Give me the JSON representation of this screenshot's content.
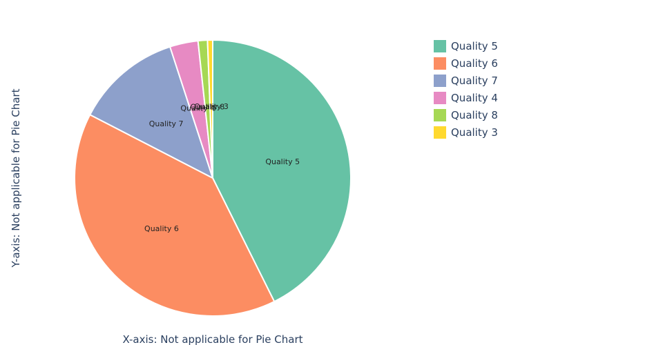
{
  "chart_data": {
    "type": "pie",
    "title": "",
    "xlabel": "X-axis: Not applicable for Pie Chart",
    "ylabel": "Y-axis: Not applicable for Pie Chart",
    "legend_position": "top-right",
    "slices": [
      {
        "label": "Quality 5",
        "value": 42.6,
        "color": "#66c2a5"
      },
      {
        "label": "Quality 6",
        "value": 39.9,
        "color": "#fc8d62"
      },
      {
        "label": "Quality 7",
        "value": 12.4,
        "color": "#8da0cb"
      },
      {
        "label": "Quality 4",
        "value": 3.3,
        "color": "#e78ac3"
      },
      {
        "label": "Quality 8",
        "value": 1.1,
        "color": "#a6d854"
      },
      {
        "label": "Quality 3",
        "value": 0.6,
        "color": "#ffd92f"
      }
    ]
  }
}
